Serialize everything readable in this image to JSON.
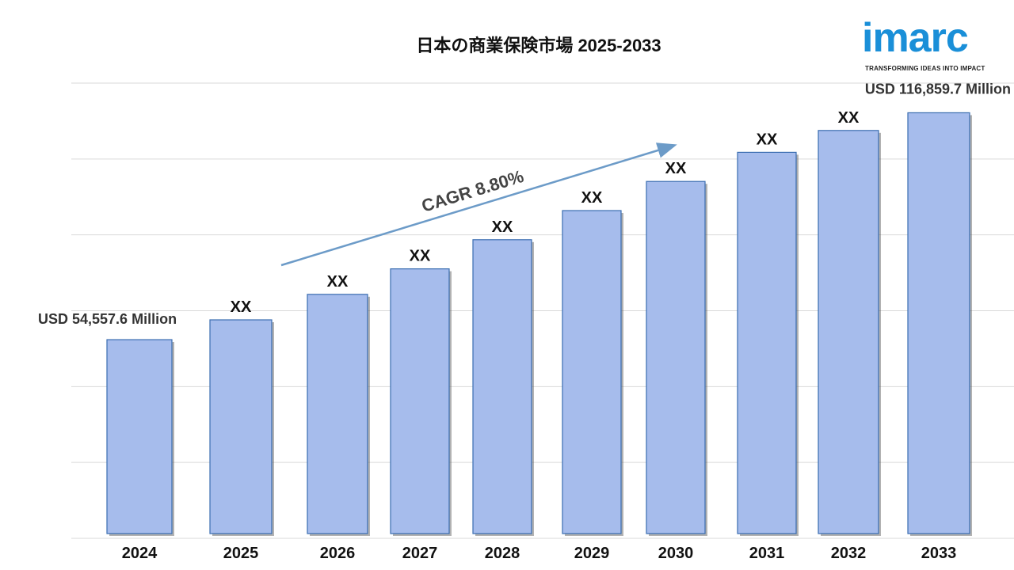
{
  "logo": {
    "word": "imarc",
    "tagline": "TRANSFORMING IDEAS INTO IMPACT",
    "color": "#1a8fd8"
  },
  "chart_data": {
    "type": "bar",
    "title": "日本の商業保険市場 2025-2033",
    "categories": [
      "2024",
      "2025",
      "2026",
      "2027",
      "2028",
      "2029",
      "2030",
      "2031",
      "2032",
      "2033"
    ],
    "values": [
      54557.6,
      60000,
      67000,
      74000,
      82000,
      90000,
      98000,
      106000,
      112000,
      116859.7
    ],
    "data_labels": [
      "USD 54,557.6 Million",
      "XX",
      "XX",
      "XX",
      "XX",
      "XX",
      "XX",
      "XX",
      "XX",
      "USD 116,859.7 Million"
    ],
    "annotation": "CAGR  8.80%",
    "ylim": [
      0,
      125000
    ],
    "grid": true,
    "bar_color": "#a6bcec",
    "bar_edge_color": "#3a6db0",
    "arrow_color": "#6c9bc8"
  }
}
